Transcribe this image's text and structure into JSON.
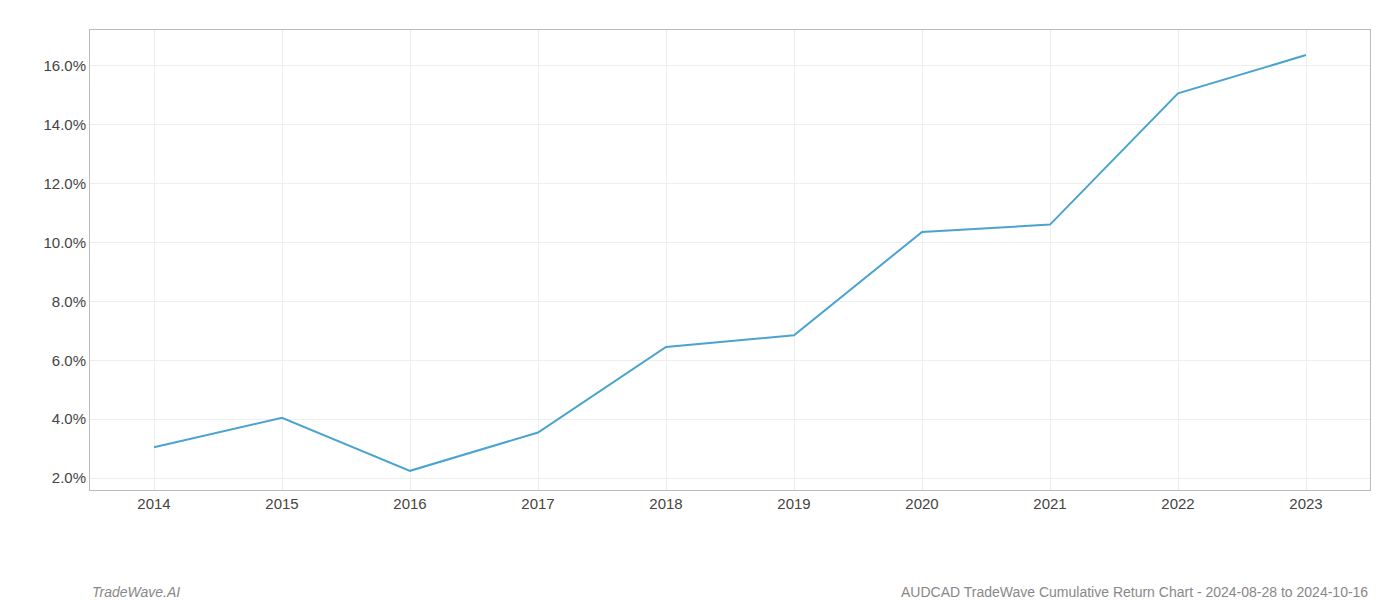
{
  "chart_data": {
    "type": "line",
    "title": "AUDCAD TradeWave Cumulative Return Chart - 2024-08-28 to 2024-10-16",
    "annotations": [
      "TradeWave.AI"
    ],
    "x": [
      2014,
      2015,
      2016,
      2017,
      2018,
      2019,
      2020,
      2021,
      2022,
      2023
    ],
    "values": [
      3.05,
      4.05,
      2.25,
      3.55,
      6.45,
      6.85,
      10.35,
      10.6,
      15.05,
      16.35
    ],
    "color": "#4aa3d0",
    "xlim": [
      2013.5,
      2023.5
    ],
    "ylim": [
      1.6,
      17.2
    ],
    "xticks": [
      2014,
      2015,
      2016,
      2017,
      2018,
      2019,
      2020,
      2021,
      2022,
      2023
    ],
    "yticks": [
      {
        "value": 2.0,
        "label": "2.0%"
      },
      {
        "value": 4.0,
        "label": "4.0%"
      },
      {
        "value": 6.0,
        "label": "6.0%"
      },
      {
        "value": 8.0,
        "label": "8.0%"
      },
      {
        "value": 10.0,
        "label": "10.0%"
      },
      {
        "value": 12.0,
        "label": "12.0%"
      },
      {
        "value": 14.0,
        "label": "14.0%"
      },
      {
        "value": 16.0,
        "label": "16.0%"
      }
    ],
    "grid": true
  }
}
